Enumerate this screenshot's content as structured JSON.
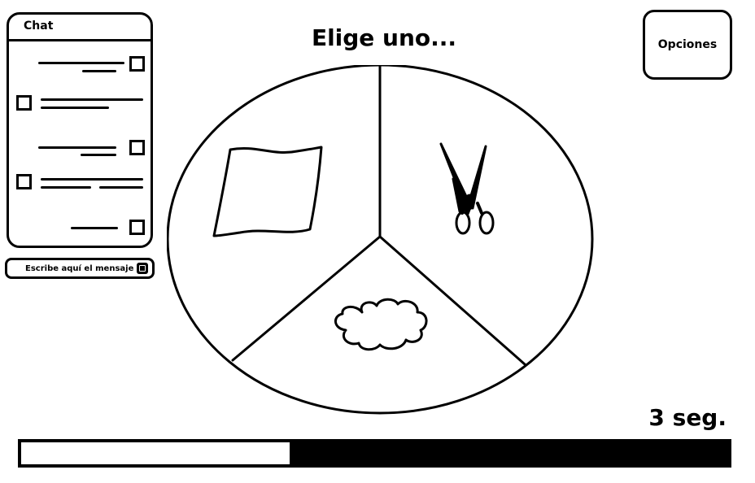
{
  "chat": {
    "title": "Chat",
    "input_placeholder": "Escribe aquí el mensaje"
  },
  "header": {
    "title": "Elige uno...",
    "options_label": "Opciones"
  },
  "choices": [
    {
      "name": "paper",
      "icon": "paper-icon"
    },
    {
      "name": "scissors",
      "icon": "scissors-icon"
    },
    {
      "name": "rock",
      "icon": "rock-icon"
    }
  ],
  "timer": {
    "label": "3 seg.",
    "progress": 0.38
  },
  "colors": {
    "ink": "#000000",
    "background": "#ffffff"
  }
}
